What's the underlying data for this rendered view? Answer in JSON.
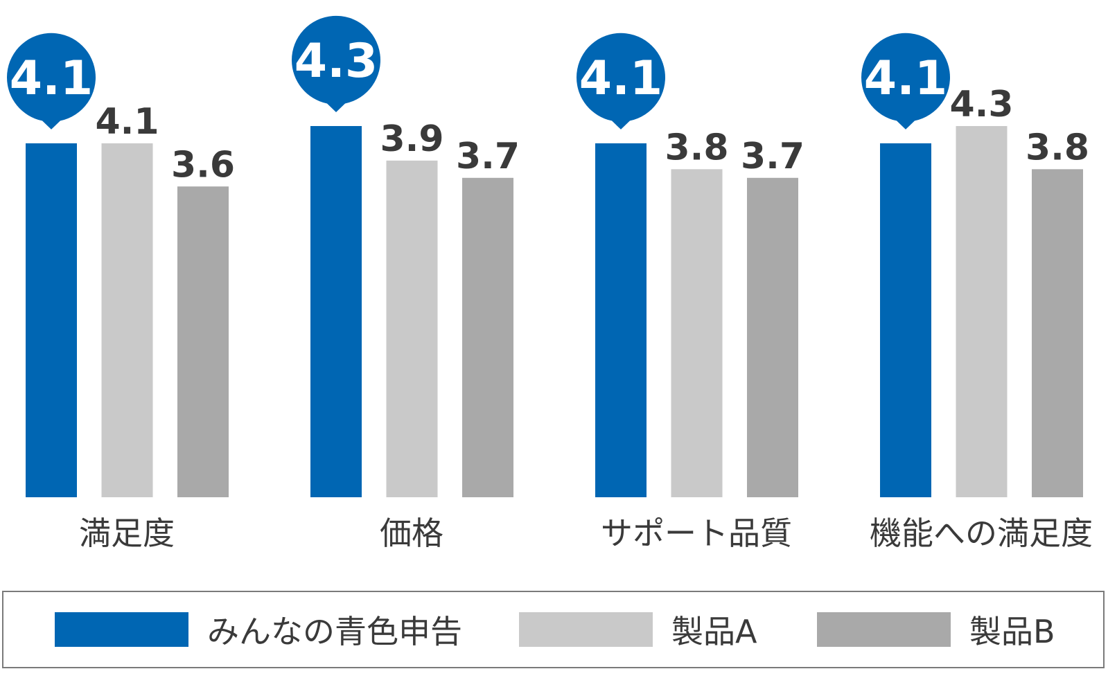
{
  "chart_data": {
    "type": "bar",
    "categories": [
      "満足度",
      "価格",
      "サポート品質",
      "機能への満足度"
    ],
    "series": [
      {
        "name": "みんなの青色申告",
        "values": [
          4.1,
          4.3,
          4.1,
          4.1
        ],
        "color": "#0066b3"
      },
      {
        "name": "製品A",
        "values": [
          4.1,
          3.9,
          3.8,
          4.3
        ],
        "color": "#c9c9c9"
      },
      {
        "name": "製品B",
        "values": [
          3.6,
          3.7,
          3.7,
          3.8
        ],
        "color": "#a9a9a9"
      }
    ],
    "highlight_series": "みんなの青色申告",
    "ylim": [
      0,
      4.3
    ],
    "grid": false,
    "legend_position": "bottom"
  },
  "colors": {
    "primary": "#0066b3",
    "value_text": "#3a3a3a",
    "label_text": "#3a3a3a",
    "bubble_text": "#ffffff"
  }
}
